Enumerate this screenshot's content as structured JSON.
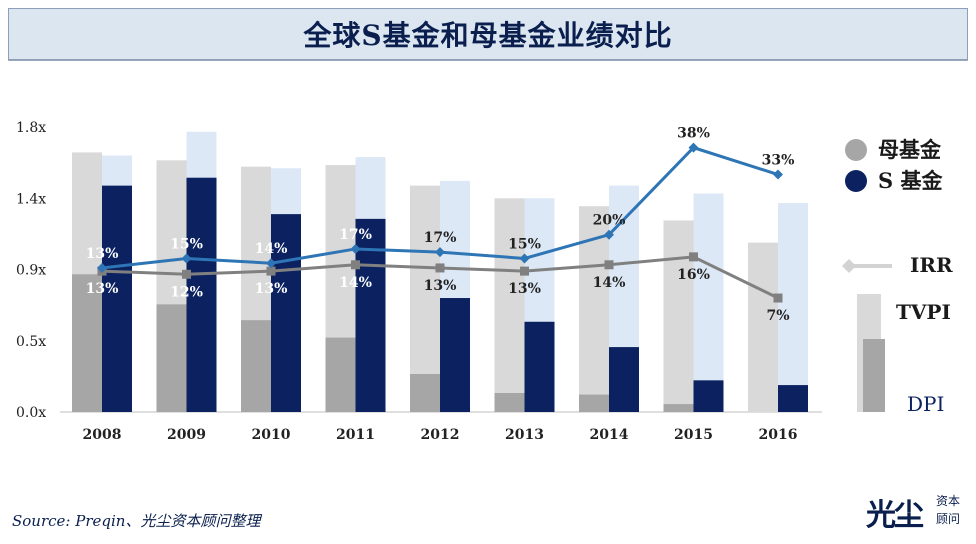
{
  "header": {
    "title": "全球S基金和母基金业绩对比"
  },
  "footer": {
    "source": "Source: Preqin、光尘资本顾问整理"
  },
  "logo": {
    "main": "光尘",
    "sub": "资本顾问"
  },
  "legend": {
    "fof": "母基金",
    "s_fund": "S 基金",
    "irr": "IRR",
    "tvpi": "TVPI",
    "dpi": "DPI"
  },
  "colors": {
    "fof_tvpi": "#d9d9d9",
    "fof_dpi": "#a6a6a6",
    "s_tvpi": "#dce8f6",
    "s_dpi": "#0b2160",
    "s_irr_line": "#2e75b6",
    "fof_irr_line": "#808080",
    "axis_text": "#222222"
  },
  "chart_data": {
    "type": "bar",
    "categories": [
      "2008",
      "2009",
      "2010",
      "2011",
      "2012",
      "2013",
      "2014",
      "2015",
      "2016"
    ],
    "ylim": [
      0,
      1.8
    ],
    "yticks": [
      "0.0x",
      "0.5x",
      "0.9x",
      "1.4x",
      "1.8x"
    ],
    "ytick_values": [
      0,
      0.45,
      0.9,
      1.35,
      1.8
    ],
    "series": [
      {
        "name": "母基金 TVPI",
        "values": [
          1.64,
          1.59,
          1.55,
          1.56,
          1.43,
          1.35,
          1.3,
          1.21,
          1.07
        ]
      },
      {
        "name": "母基金 DPI",
        "values": [
          0.87,
          0.68,
          0.58,
          0.47,
          0.24,
          0.12,
          0.11,
          0.05,
          0.0
        ]
      },
      {
        "name": "S 基金 TVPI",
        "values": [
          1.62,
          1.77,
          1.54,
          1.61,
          1.46,
          1.35,
          1.43,
          1.38,
          1.32
        ]
      },
      {
        "name": "S 基金 DPI",
        "values": [
          1.43,
          1.48,
          1.25,
          1.22,
          0.72,
          0.57,
          0.41,
          0.2,
          0.17
        ]
      }
    ],
    "irr_lines": [
      {
        "name": "S 基金 IRR",
        "position": [
          0.91,
          0.97,
          0.94,
          1.03,
          1.01,
          0.97,
          1.12,
          1.67,
          1.5
        ],
        "labels": [
          "13%",
          "15%",
          "14%",
          "17%",
          "17%",
          "15%",
          "20%",
          "38%",
          "33%"
        ]
      },
      {
        "name": "母基金 IRR",
        "position": [
          0.89,
          0.87,
          0.89,
          0.93,
          0.91,
          0.89,
          0.93,
          0.98,
          0.72
        ],
        "labels": [
          "13%",
          "12%",
          "13%",
          "14%",
          "13%",
          "13%",
          "14%",
          "16%",
          "7%"
        ]
      }
    ]
  }
}
